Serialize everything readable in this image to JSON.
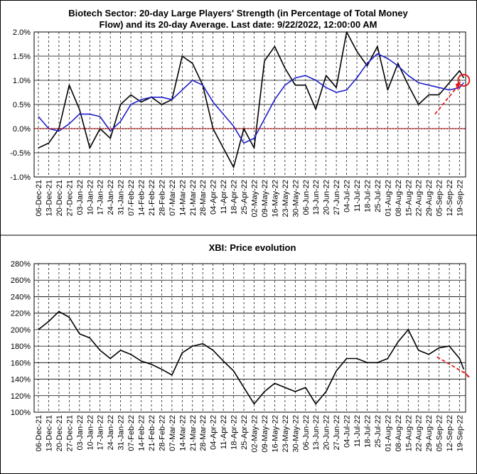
{
  "chart_data": [
    {
      "type": "line",
      "title_lines": [
        "Biotech Sector: 20-day Large Players' Strength (in Percentage of Total Money",
        "Flow) and its 20-day Average. Last date: 9/22/2022, 12:00:00 AM"
      ],
      "ylim": [
        -1.0,
        2.0
      ],
      "y_ticks": [
        "-1.0%",
        "-0.5%",
        "0.0%",
        "0.5%",
        "1.0%",
        "1.5%",
        "2.0%"
      ],
      "x_ticks": [
        "06-Dec-21",
        "13-Dec-21",
        "20-Dec-21",
        "27-Dec-21",
        "03-Jan-22",
        "10-Jan-22",
        "17-Jan-22",
        "24-Jan-22",
        "31-Jan-22",
        "07-Feb-22",
        "14-Feb-22",
        "21-Feb-22",
        "28-Feb-22",
        "07-Mar-22",
        "14-Mar-22",
        "21-Mar-22",
        "28-Mar-22",
        "04-Apr-22",
        "11-Apr-22",
        "18-Apr-22",
        "25-Apr-22",
        "02-May-22",
        "09-May-22",
        "16-May-22",
        "23-May-22",
        "30-May-22",
        "06-Jun-22",
        "13-Jun-22",
        "20-Jun-22",
        "27-Jun-22",
        "04-Jul-22",
        "11-Jul-22",
        "18-Jul-22",
        "25-Jul-22",
        "01-Aug-22",
        "08-Aug-22",
        "15-Aug-22",
        "22-Aug-22",
        "29-Aug-22",
        "05-Sep-22",
        "12-Sep-22",
        "19-Sep-22"
      ],
      "grid": "vertical dashed, horizontal solid",
      "series": [
        {
          "color": "#000000",
          "x": [
            0,
            1,
            2,
            3,
            4,
            5,
            6,
            7,
            8,
            9,
            10,
            11,
            12,
            13,
            14,
            15,
            16,
            17,
            18,
            19,
            20,
            21,
            22,
            23,
            24,
            25,
            26,
            27,
            28,
            29,
            30,
            31,
            32,
            33,
            34,
            35,
            36,
            37,
            38,
            39,
            40,
            41,
            41.4
          ],
          "values": [
            -0.4,
            -0.3,
            0.0,
            0.9,
            0.4,
            -0.4,
            0.0,
            -0.2,
            0.5,
            0.7,
            0.55,
            0.65,
            0.5,
            0.6,
            1.5,
            1.35,
            0.9,
            0.0,
            -0.4,
            -0.8,
            0.0,
            -0.4,
            1.4,
            1.7,
            1.25,
            0.9,
            0.9,
            0.4,
            1.1,
            0.85,
            2.0,
            1.6,
            1.3,
            1.7,
            0.8,
            1.35,
            0.9,
            0.5,
            0.7,
            0.7,
            0.95,
            1.2,
            1.05
          ]
        },
        {
          "color": "#1f1fcc",
          "x": [
            0,
            1,
            2,
            3,
            4,
            5,
            6,
            7,
            8,
            9,
            10,
            11,
            12,
            13,
            14,
            15,
            16,
            17,
            18,
            19,
            20,
            21,
            22,
            23,
            24,
            25,
            26,
            27,
            28,
            29,
            30,
            31,
            32,
            33,
            34,
            35,
            36,
            37,
            38,
            39,
            40,
            41,
            41.4
          ],
          "values": [
            0.25,
            0.0,
            -0.05,
            0.1,
            0.3,
            0.3,
            0.25,
            -0.05,
            0.15,
            0.5,
            0.6,
            0.65,
            0.65,
            0.6,
            0.8,
            1.0,
            0.9,
            0.55,
            0.3,
            0.05,
            -0.3,
            -0.2,
            0.2,
            0.6,
            0.9,
            1.05,
            1.1,
            1.0,
            0.85,
            0.75,
            0.8,
            1.05,
            1.35,
            1.55,
            1.45,
            1.3,
            1.1,
            0.95,
            0.9,
            0.85,
            0.8,
            0.85,
            0.95
          ]
        }
      ],
      "zero_line_color": "#cc0000",
      "annotation_color": "#e02020"
    },
    {
      "type": "line",
      "title": "XBI: Price evolution",
      "ylim": [
        100,
        280
      ],
      "y_ticks": [
        "100%",
        "120%",
        "140%",
        "160%",
        "180%",
        "200%",
        "220%",
        "240%",
        "260%",
        "280%"
      ],
      "x_ticks": [
        "06-Dec-21",
        "13-Dec-21",
        "20-Dec-21",
        "27-Dec-21",
        "03-Jan-22",
        "10-Jan-22",
        "17-Jan-22",
        "24-Jan-22",
        "31-Jan-22",
        "07-Feb-22",
        "14-Feb-22",
        "21-Feb-22",
        "28-Feb-22",
        "07-Mar-22",
        "14-Mar-22",
        "21-Mar-22",
        "28-Mar-22",
        "04-Apr-22",
        "11-Apr-22",
        "18-Apr-22",
        "25-Apr-22",
        "02-May-22",
        "09-May-22",
        "16-May-22",
        "23-May-22",
        "30-May-22",
        "06-Jun-22",
        "13-Jun-22",
        "20-Jun-22",
        "27-Jun-22",
        "04-Jul-22",
        "11-Jul-22",
        "18-Jul-22",
        "25-Jul-22",
        "01-Aug-22",
        "08-Aug-22",
        "15-Aug-22",
        "22-Aug-22",
        "29-Aug-22",
        "05-Sep-22",
        "12-Sep-22",
        "19-Sep-22"
      ],
      "grid": "vertical dashed, horizontal solid",
      "series": [
        {
          "color": "#000000",
          "x": [
            0,
            1,
            2,
            3,
            4,
            5,
            6,
            7,
            8,
            9,
            10,
            11,
            12,
            13,
            14,
            15,
            16,
            17,
            18,
            19,
            20,
            21,
            22,
            23,
            24,
            25,
            26,
            27,
            28,
            29,
            30,
            31,
            32,
            33,
            34,
            35,
            36,
            37,
            38,
            39,
            40,
            41,
            41.4
          ],
          "values": [
            200,
            210,
            222,
            215,
            195,
            190,
            175,
            165,
            175,
            170,
            162,
            158,
            152,
            145,
            172,
            180,
            183,
            175,
            162,
            150,
            130,
            110,
            125,
            135,
            130,
            125,
            130,
            110,
            125,
            150,
            165,
            165,
            160,
            160,
            165,
            185,
            200,
            175,
            170,
            178,
            180,
            165,
            152
          ]
        }
      ],
      "annotation_color": "#e02020"
    }
  ]
}
